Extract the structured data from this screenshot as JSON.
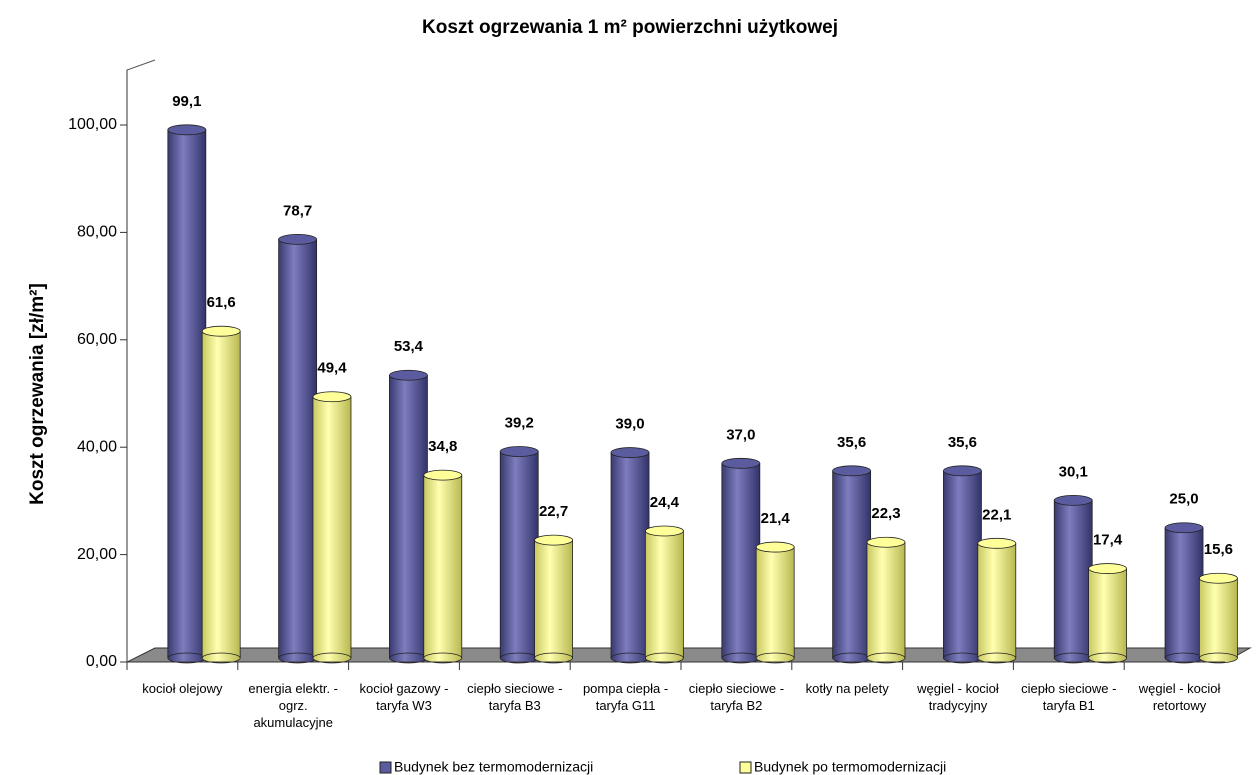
{
  "chart_data": {
    "type": "bar",
    "title": "Koszt ogrzewania 1 m² powierzchni użytkowej",
    "y_label": "Koszt ogrzewania [zł/m²]",
    "categories": [
      "kocioł olejowy",
      "energia elektr. - ogrz. akumulacyjne",
      "kocioł gazowy - taryfa W3",
      "ciepło sieciowe - taryfa B3",
      "pompa ciepła - taryfa G11",
      "ciepło sieciowe - taryfa B2",
      "kotły na pelety",
      "węgiel - kocioł tradycyjny",
      "ciepło sieciowe - taryfa B1",
      "węgiel - kocioł retortowy"
    ],
    "series": [
      {
        "name": "Budynek bez termomodernizacji",
        "color": "#5b5b9f",
        "values": [
          99.1,
          78.7,
          53.4,
          39.2,
          39.0,
          37.0,
          35.6,
          35.6,
          30.1,
          25.0
        ],
        "value_labels": [
          "99,1",
          "78,7",
          "53,4",
          "39,2",
          "39,0",
          "37,0",
          "35,6",
          "35,6",
          "30,1",
          "25,0"
        ]
      },
      {
        "name": "Budynek po termomodernizacji",
        "color": "#ffff99",
        "values": [
          61.6,
          49.4,
          34.8,
          22.7,
          24.4,
          21.4,
          22.3,
          22.1,
          17.4,
          15.6
        ],
        "value_labels": [
          "61,6",
          "49,4",
          "34,8",
          "22,7",
          "24,4",
          "21,4",
          "22,3",
          "22,1",
          "17,4",
          "15,6"
        ]
      }
    ],
    "ylim": [
      0,
      110
    ],
    "yticks": [
      {
        "value": 0,
        "label": "0,00"
      },
      {
        "value": 20,
        "label": "20,00"
      },
      {
        "value": 40,
        "label": "40,00"
      },
      {
        "value": 60,
        "label": "60,00"
      },
      {
        "value": 80,
        "label": "80,00"
      },
      {
        "value": 100,
        "label": "100,00"
      }
    ],
    "legend": "bottom"
  }
}
